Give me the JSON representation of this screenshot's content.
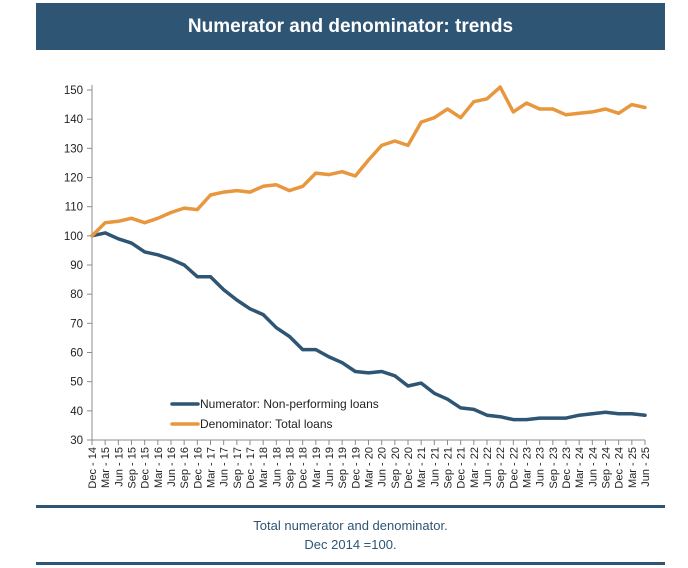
{
  "header": {
    "title": "Numerator and denominator: trends"
  },
  "caption": {
    "line1": "Total numerator and denominator.",
    "line2": "Dec 2014 =100."
  },
  "colors": {
    "header_bg": "#2e5574",
    "numerator": "#2e5574",
    "denominator": "#e8973f"
  },
  "chart_data": {
    "type": "line",
    "title": "Numerator and denominator: trends",
    "xlabel": "",
    "ylabel": "",
    "ylim": [
      30,
      150
    ],
    "yticks": [
      30,
      40,
      50,
      60,
      70,
      80,
      90,
      100,
      110,
      120,
      130,
      140,
      150
    ],
    "grid": false,
    "legend_position": "bottom-left",
    "x": [
      "Dec - 14",
      "Mar - 15",
      "Jun - 15",
      "Sep - 15",
      "Dec - 15",
      "Mar - 16",
      "Jun - 16",
      "Sep - 16",
      "Dec - 16",
      "Mar - 17",
      "Jun - 17",
      "Sep - 17",
      "Dec - 17",
      "Mar - 18",
      "Jun - 18",
      "Sep - 18",
      "Dec - 18",
      "Mar - 19",
      "Jun - 19",
      "Sep - 19",
      "Dec - 19",
      "Mar - 20",
      "Jun - 20",
      "Sep - 20",
      "Dec - 20",
      "Mar - 21",
      "Jun - 21",
      "Sep - 21",
      "Dec - 21",
      "Mar - 22",
      "Jun - 22",
      "Sep - 22",
      "Dec - 22",
      "Mar - 23",
      "Jun - 23",
      "Sep - 23",
      "Dec - 23",
      "Mar - 24",
      "Jun - 24",
      "Sep - 24",
      "Dec - 24",
      "Mar - 25",
      "Jun - 25"
    ],
    "series": [
      {
        "name": "Numerator: Non-performing loans",
        "color": "#2e5574",
        "values": [
          100,
          101,
          99,
          97.5,
          94.5,
          93.5,
          92,
          90,
          86,
          86,
          81.5,
          78,
          75,
          73,
          68.5,
          65.5,
          61,
          61,
          58.5,
          56.5,
          53.5,
          53,
          53.5,
          52,
          48.5,
          49.5,
          46,
          44,
          41,
          40.5,
          38.5,
          38,
          37,
          37,
          37.5,
          37.5,
          37.5,
          38.5,
          39,
          39.5,
          39,
          39,
          38.5
        ]
      },
      {
        "name": "Denominator: Total loans",
        "color": "#e8973f",
        "values": [
          100,
          104.5,
          105,
          106,
          104.5,
          106,
          108,
          109.5,
          109,
          114,
          115,
          115.5,
          115,
          117,
          117.5,
          115.5,
          117,
          121.5,
          121,
          122,
          120.5,
          126,
          131,
          132.5,
          131,
          139,
          140.5,
          143.5,
          140.5,
          146,
          147,
          151,
          142.5,
          145.5,
          143.5,
          143.5,
          141.5,
          142,
          142.5,
          143.5,
          142,
          145,
          144
        ]
      }
    ]
  }
}
